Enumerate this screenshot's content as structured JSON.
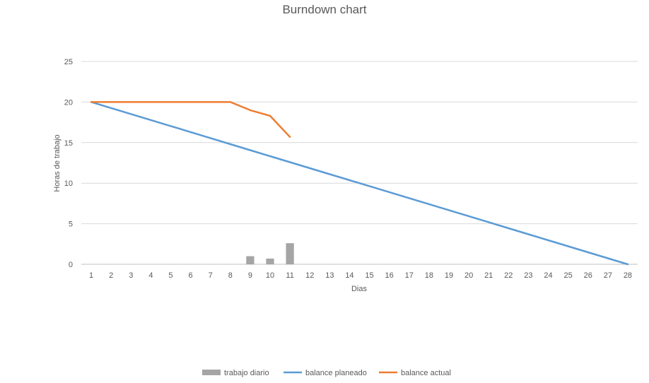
{
  "chart_data": {
    "type": "line",
    "title": "Burndown chart",
    "xlabel": "Dias",
    "ylabel": "Horas de trabajo",
    "ylim": [
      0,
      25
    ],
    "yticks": [
      0,
      5,
      10,
      15,
      20,
      25
    ],
    "grid": true,
    "legend_position": "bottom",
    "categories": [
      1,
      2,
      3,
      4,
      5,
      6,
      7,
      8,
      9,
      10,
      11,
      12,
      13,
      14,
      15,
      16,
      17,
      18,
      19,
      20,
      21,
      22,
      23,
      24,
      25,
      26,
      27,
      28
    ],
    "series": [
      {
        "name": "trabajo diario",
        "type": "bar",
        "color": "#A5A5A5",
        "values": [
          null,
          null,
          null,
          null,
          null,
          null,
          null,
          null,
          1.0,
          0.7,
          2.6,
          null,
          null,
          null,
          null,
          null,
          null,
          null,
          null,
          null,
          null,
          null,
          null,
          null,
          null,
          null,
          null,
          null
        ]
      },
      {
        "name": "balance planeado",
        "type": "line",
        "color": "#5B9BD5",
        "values": [
          20,
          19.26,
          18.52,
          17.78,
          17.04,
          16.3,
          15.56,
          14.81,
          14.07,
          13.33,
          12.59,
          11.85,
          11.11,
          10.37,
          9.63,
          8.89,
          8.15,
          7.41,
          6.67,
          5.93,
          5.19,
          4.44,
          3.7,
          2.96,
          2.22,
          1.48,
          0.74,
          0
        ]
      },
      {
        "name": "balance actual",
        "type": "line",
        "color": "#ED7D31",
        "values": [
          20,
          20,
          20,
          20,
          20,
          20,
          20,
          20,
          19,
          18.3,
          15.7,
          null,
          null,
          null,
          null,
          null,
          null,
          null,
          null,
          null,
          null,
          null,
          null,
          null,
          null,
          null,
          null,
          null
        ]
      }
    ]
  }
}
